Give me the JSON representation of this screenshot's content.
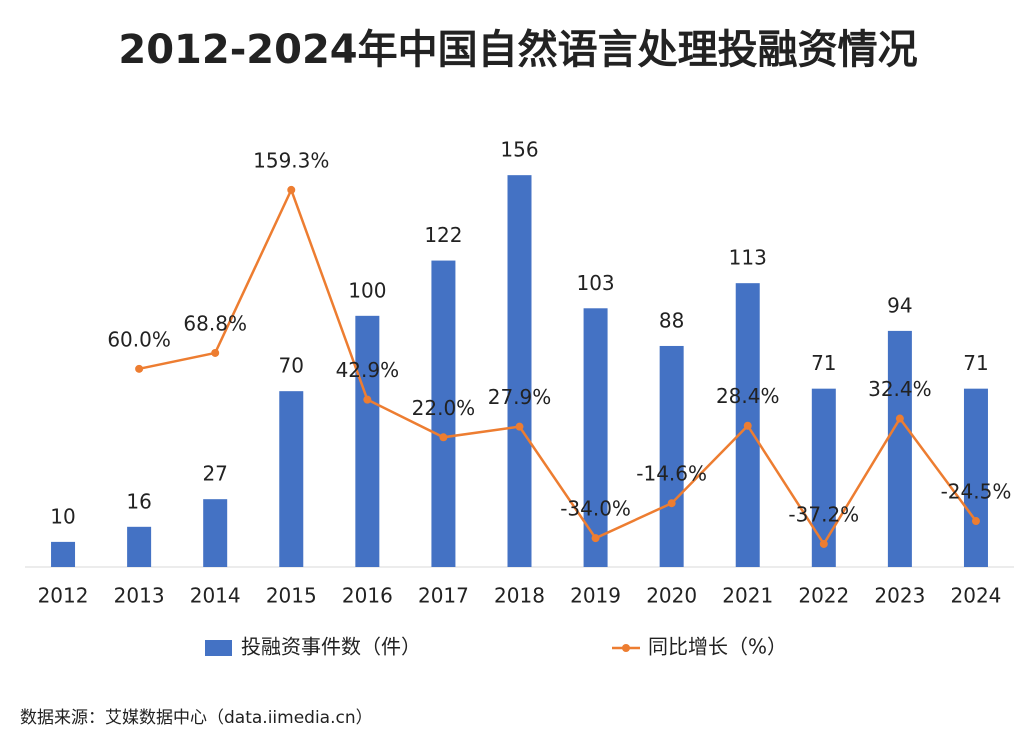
{
  "chart_data": {
    "type": "bar-line",
    "title": "2012-2024年中国自然语言处理投融资情况",
    "categories": [
      "2012",
      "2013",
      "2014",
      "2015",
      "2016",
      "2017",
      "2018",
      "2019",
      "2020",
      "2021",
      "2022",
      "2023",
      "2024"
    ],
    "series": [
      {
        "name": "投融资事件数（件）",
        "color": "#4472c4",
        "type": "bar",
        "values": [
          10,
          16,
          27,
          70,
          100,
          122,
          156,
          103,
          88,
          113,
          71,
          94,
          71
        ]
      },
      {
        "name": "同比增长（%）",
        "color": "#ed7d31",
        "type": "line",
        "axis": "y2",
        "values": [
          null,
          60.0,
          68.8,
          159.3,
          42.9,
          22.0,
          27.9,
          -34.0,
          -14.6,
          28.4,
          -37.2,
          32.4,
          -24.5
        ],
        "value_labels": [
          null,
          "60.0%",
          "68.8%",
          "159.3%",
          "42.9%",
          "22.0%",
          "27.9%",
          "-34.0%",
          "-14.6%",
          "28.4%",
          "-37.2%",
          "32.4%",
          "-24.5%"
        ]
      }
    ],
    "ylim": [
      0,
      170
    ],
    "y2lim": [
      -50,
      187
    ],
    "source": "数据来源：艾媒数据中心（data.iimedia.cn）"
  }
}
